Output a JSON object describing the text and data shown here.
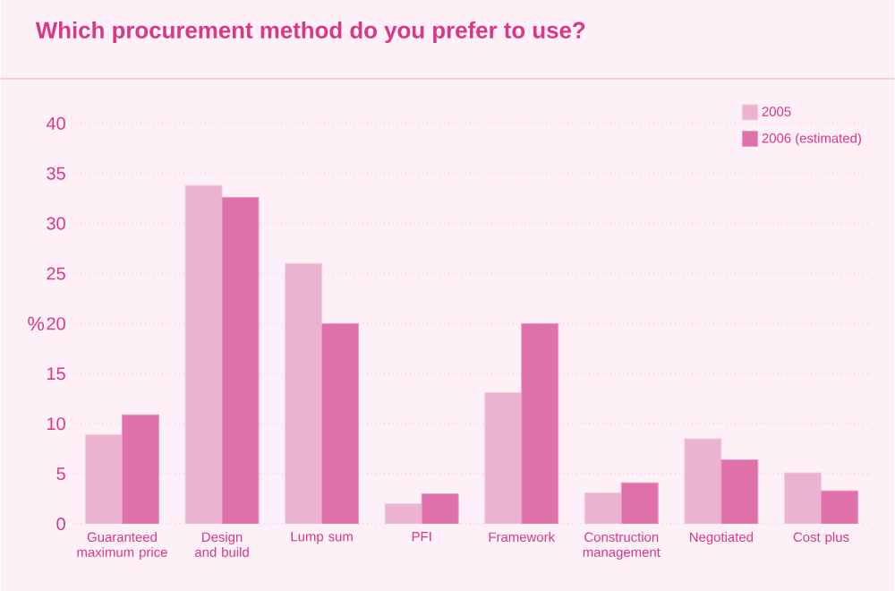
{
  "chart_data": {
    "type": "bar",
    "title": "Which procurement method do you prefer to use?",
    "ylabel": "%",
    "categories": [
      "Guaranteed maximum price",
      "Design and build",
      "Lump sum",
      "PFI",
      "Framework",
      "Construction management",
      "Negotiated",
      "Cost plus"
    ],
    "series": [
      {
        "name": "2005",
        "color": "#ecb3d1",
        "values": [
          8.9,
          33.8,
          26,
          2.0,
          13.1,
          3.1,
          8.5,
          5.1
        ]
      },
      {
        "name": "2006 (estimated)",
        "color": "#e070aa",
        "values": [
          10.9,
          32.6,
          20,
          3.0,
          20,
          4.1,
          6.4,
          3.3
        ]
      }
    ],
    "ylim": [
      0,
      40
    ],
    "yticks": [
      0,
      5,
      10,
      15,
      20,
      25,
      30,
      35,
      40
    ],
    "grid": "y",
    "legend": "top right"
  }
}
